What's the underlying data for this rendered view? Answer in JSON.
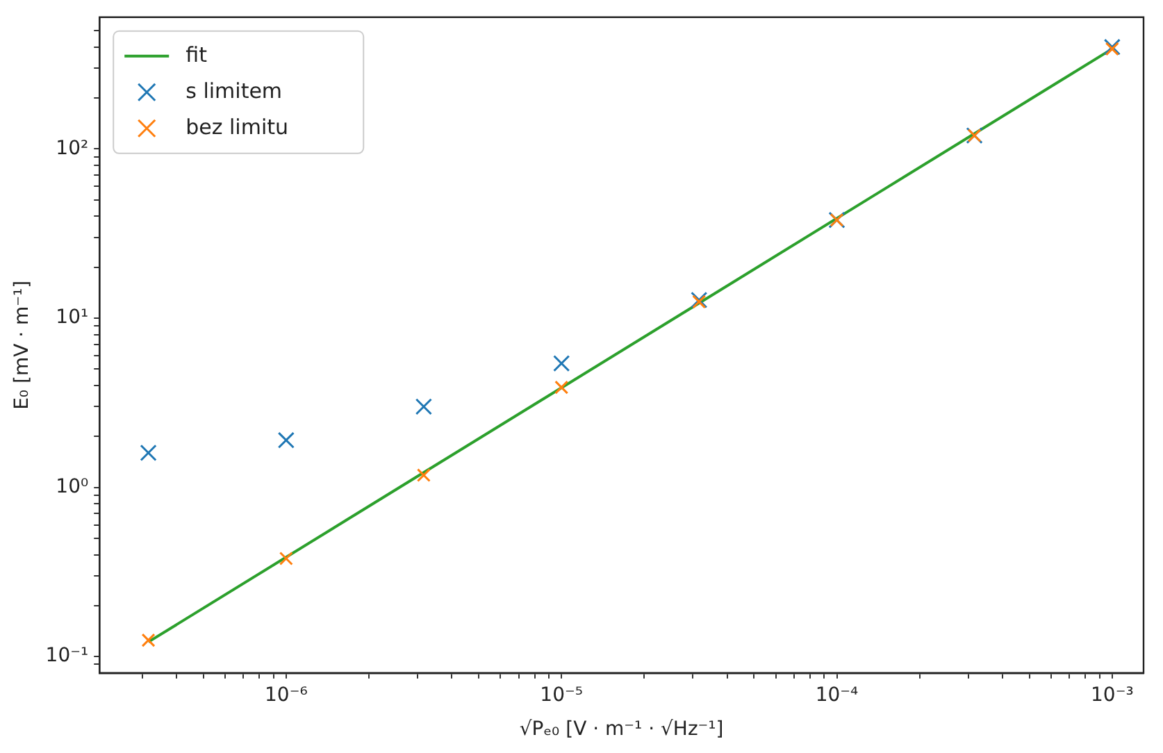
{
  "chart_data": {
    "type": "scatter",
    "xlabel": "√Pₑ₀ [V · m⁻¹ · √Hz⁻¹]",
    "ylabel": "E₀ [mV · m⁻¹]",
    "log": "xy",
    "grid": false,
    "legend": "top left",
    "marker": "cross",
    "x": [
      3.16e-07,
      1e-06,
      3.16e-06,
      1e-05,
      3.16e-05,
      0.0001,
      0.000316,
      0.001
    ],
    "series": [
      {
        "name": "fit",
        "type": "line",
        "color": "#2ca02c",
        "marker": "none",
        "x": [
          3.16e-07,
          0.001
        ],
        "values": [
          0.122,
          390
        ]
      },
      {
        "name": "s limitem",
        "color": "#1f77b4",
        "values": [
          1.6,
          1.9,
          3.0,
          5.4,
          12.8,
          38,
          120,
          400
        ]
      },
      {
        "name": "bez limitu",
        "color": "#ff7f0e",
        "values": [
          0.125,
          0.38,
          1.18,
          3.9,
          12.5,
          38,
          120,
          390
        ]
      }
    ],
    "xlim": [
      2.1e-07,
      0.0013
    ],
    "ylim": [
      0.08,
      600
    ],
    "xticks": [
      {
        "value": 3e-07,
        "label": null
      },
      {
        "value": 4e-07,
        "label": null
      },
      {
        "value": 5e-07,
        "label": null
      },
      {
        "value": 6e-07,
        "label": null
      },
      {
        "value": 7e-07,
        "label": null
      },
      {
        "value": 8e-07,
        "label": null
      },
      {
        "value": 9e-07,
        "label": null
      },
      {
        "value": 1e-06,
        "label": "10⁻⁶"
      },
      {
        "value": 2e-06,
        "label": null
      },
      {
        "value": 3e-06,
        "label": null
      },
      {
        "value": 4e-06,
        "label": null
      },
      {
        "value": 5e-06,
        "label": null
      },
      {
        "value": 6e-06,
        "label": null
      },
      {
        "value": 7e-06,
        "label": null
      },
      {
        "value": 8e-06,
        "label": null
      },
      {
        "value": 9e-06,
        "label": null
      },
      {
        "value": 1e-05,
        "label": "10⁻⁵"
      },
      {
        "value": 2e-05,
        "label": null
      },
      {
        "value": 3e-05,
        "label": null
      },
      {
        "value": 4e-05,
        "label": null
      },
      {
        "value": 5e-05,
        "label": null
      },
      {
        "value": 6e-05,
        "label": null
      },
      {
        "value": 7e-05,
        "label": null
      },
      {
        "value": 8e-05,
        "label": null
      },
      {
        "value": 9e-05,
        "label": null
      },
      {
        "value": 0.0001,
        "label": "10⁻⁴"
      },
      {
        "value": 0.0002,
        "label": null
      },
      {
        "value": 0.0003,
        "label": null
      },
      {
        "value": 0.0004,
        "label": null
      },
      {
        "value": 0.0005,
        "label": null
      },
      {
        "value": 0.0006,
        "label": null
      },
      {
        "value": 0.0007,
        "label": null
      },
      {
        "value": 0.0008,
        "label": null
      },
      {
        "value": 0.0009,
        "label": null
      },
      {
        "value": 0.001,
        "label": "10⁻³"
      }
    ],
    "yticks": [
      {
        "value": 0.09,
        "label": null
      },
      {
        "value": 0.1,
        "label": "10⁻¹"
      },
      {
        "value": 0.2,
        "label": null
      },
      {
        "value": 0.3,
        "label": null
      },
      {
        "value": 0.4,
        "label": null
      },
      {
        "value": 0.5,
        "label": null
      },
      {
        "value": 0.6,
        "label": null
      },
      {
        "value": 0.7,
        "label": null
      },
      {
        "value": 0.8,
        "label": null
      },
      {
        "value": 0.9,
        "label": null
      },
      {
        "value": 1,
        "label": "10⁰"
      },
      {
        "value": 2,
        "label": null
      },
      {
        "value": 3,
        "label": null
      },
      {
        "value": 4,
        "label": null
      },
      {
        "value": 5,
        "label": null
      },
      {
        "value": 6,
        "label": null
      },
      {
        "value": 7,
        "label": null
      },
      {
        "value": 8,
        "label": null
      },
      {
        "value": 9,
        "label": null
      },
      {
        "value": 10,
        "label": "10¹"
      },
      {
        "value": 20,
        "label": null
      },
      {
        "value": 30,
        "label": null
      },
      {
        "value": 40,
        "label": null
      },
      {
        "value": 50,
        "label": null
      },
      {
        "value": 60,
        "label": null
      },
      {
        "value": 70,
        "label": null
      },
      {
        "value": 80,
        "label": null
      },
      {
        "value": 90,
        "label": null
      },
      {
        "value": 100,
        "label": "10²"
      },
      {
        "value": 200,
        "label": null
      },
      {
        "value": 300,
        "label": null
      },
      {
        "value": 400,
        "label": null
      },
      {
        "value": 500,
        "label": null
      }
    ]
  }
}
